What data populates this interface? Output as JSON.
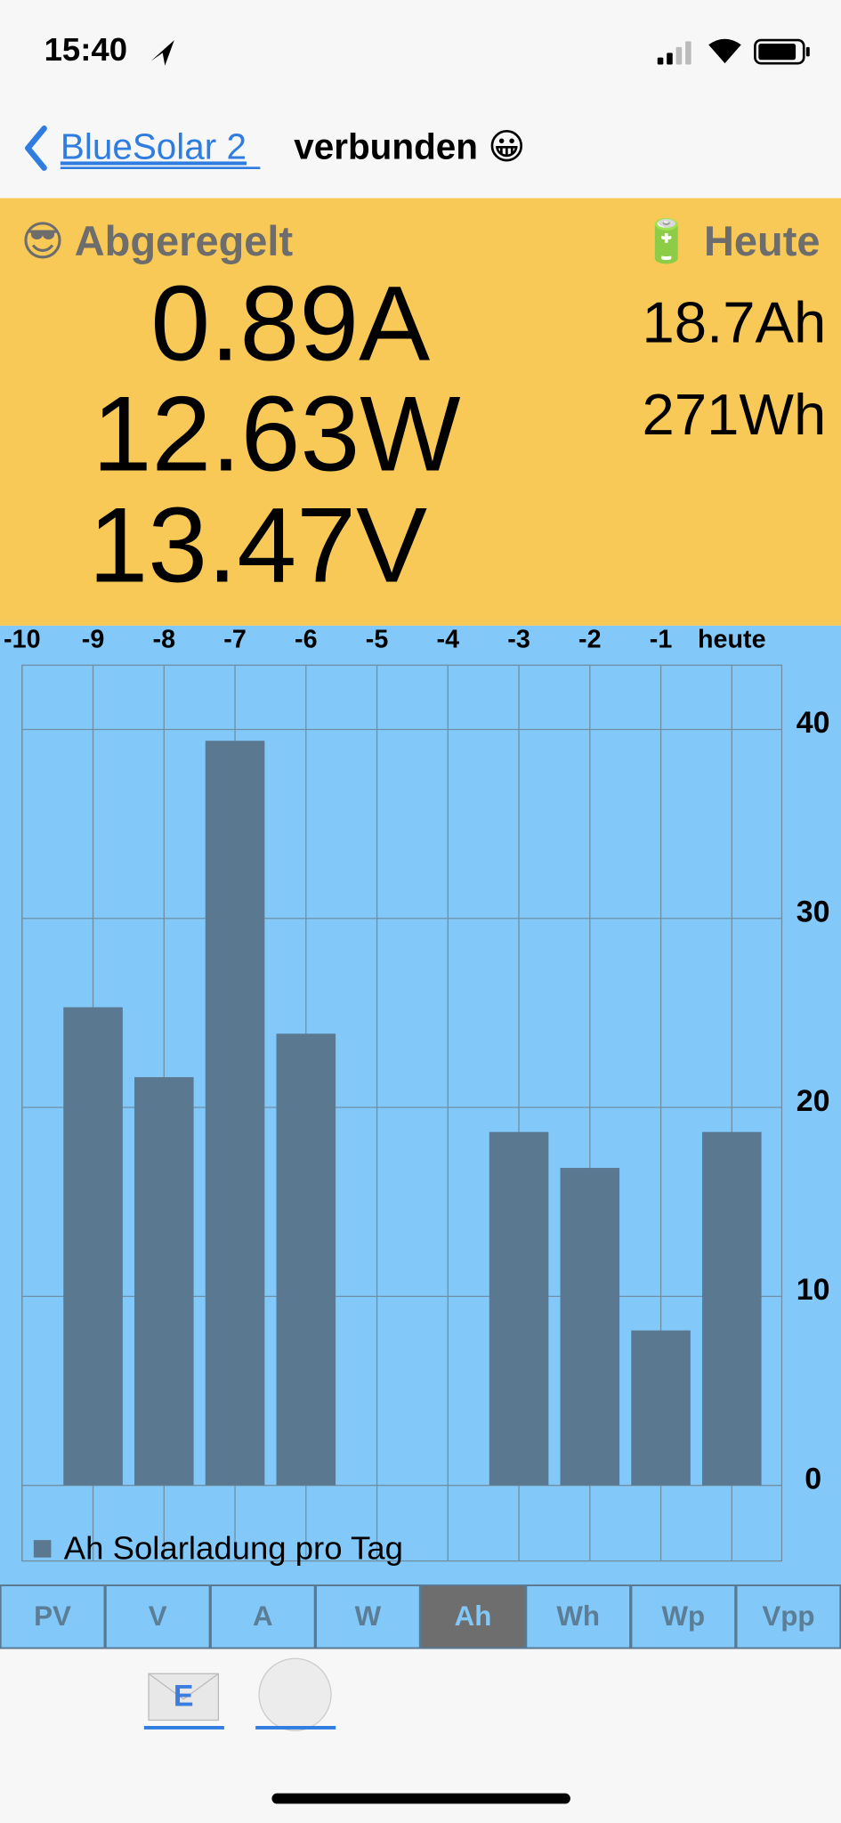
{
  "status_bar": {
    "time": "15:40"
  },
  "nav": {
    "back": "BlueSolar 2",
    "status": "verbunden 😀"
  },
  "header": {
    "state": "😎 Abgeregelt",
    "today_label": "🔋 Heute",
    "current": "0.89A",
    "power": "12.63W",
    "voltage": "13.47V",
    "today_ah": "18.7Ah",
    "today_wh": "271Wh"
  },
  "chart_data": {
    "type": "bar",
    "categories": [
      "-10",
      "-9",
      "-8",
      "-7",
      "-6",
      "-5",
      "-4",
      "-3",
      "-2",
      "-1",
      "heute"
    ],
    "series": [
      {
        "name": "Ah Solarladung pro Tag",
        "color": "#5a7890",
        "values": [
          0,
          25.3,
          21.6,
          39.4,
          23.9,
          0,
          0,
          18.7,
          16.8,
          8.2,
          18.7
        ]
      }
    ],
    "ylim": [
      -4,
      43.4
    ],
    "yticks": [
      0,
      10,
      20,
      30,
      40
    ],
    "grid": true
  },
  "tabs": [
    "PV",
    "V",
    "A",
    "W",
    "Ah",
    "Wh",
    "Wp",
    "Vpp"
  ],
  "active_tab": 4,
  "bottom_bar": {
    "mail_icon": "E"
  }
}
